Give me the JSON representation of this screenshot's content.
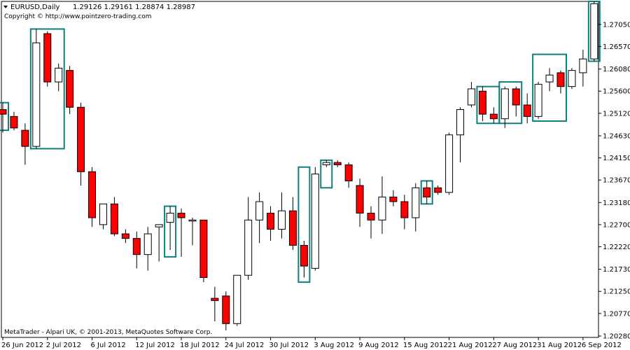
{
  "header": {
    "symbol_line": "EURUSD,Daily",
    "ohlc_line": "1.29126 1.29161 1.28874 1.28987",
    "copyright": "Copyright © http://www.pointzero-trading.com"
  },
  "footer": {
    "platform_text": "MetaTrader - Alpari UK, © 2001-2013, MetaQuotes Software Corp."
  },
  "colors": {
    "bull_fill": "#ffffff",
    "bear_fill": "#ff0000",
    "candle_outline": "#000000",
    "box_outline": "#0e7f7f",
    "background": "#ffffff"
  },
  "chart_data": {
    "type": "candlestick",
    "symbol": "EURUSD",
    "timeframe": "Daily",
    "y_ticks": [
      "1.27050",
      "1.26570",
      "1.26080",
      "1.25600",
      "1.25120",
      "1.24630",
      "1.24150",
      "1.23670",
      "1.23180",
      "1.22700",
      "1.22220",
      "1.21730",
      "1.21250",
      "1.20770",
      "1.20280"
    ],
    "x_ticks": [
      "26 Jun 2012",
      "2 Jul 2012",
      "6 Jul 2012",
      "12 Jul 2012",
      "18 Jul 2012",
      "24 Jul 2012",
      "30 Jul 2012",
      "3 Aug 2012",
      "9 Aug 2012",
      "15 Aug 2012",
      "21 Aug 2012",
      "27 Aug 2012",
      "31 Aug 2012",
      "6 Sep 2012"
    ],
    "ylim": [
      1.2025,
      1.2755
    ],
    "candles": [
      {
        "o": 1.252,
        "h": 1.2535,
        "l": 1.247,
        "c": 1.251
      },
      {
        "o": 1.2505,
        "h": 1.2515,
        "l": 1.2475,
        "c": 1.248
      },
      {
        "o": 1.2475,
        "h": 1.249,
        "l": 1.24,
        "c": 1.244
      },
      {
        "o": 1.244,
        "h": 1.2695,
        "l": 1.2435,
        "c": 1.2665
      },
      {
        "o": 1.2685,
        "h": 1.269,
        "l": 1.257,
        "c": 1.258
      },
      {
        "o": 1.258,
        "h": 1.262,
        "l": 1.256,
        "c": 1.261
      },
      {
        "o": 1.2605,
        "h": 1.2615,
        "l": 1.251,
        "c": 1.2525
      },
      {
        "o": 1.2525,
        "h": 1.2535,
        "l": 1.2355,
        "c": 1.2385
      },
      {
        "o": 1.2385,
        "h": 1.2395,
        "l": 1.2265,
        "c": 1.2285
      },
      {
        "o": 1.227,
        "h": 1.231,
        "l": 1.226,
        "c": 1.2315
      },
      {
        "o": 1.2315,
        "h": 1.233,
        "l": 1.2245,
        "c": 1.225
      },
      {
        "o": 1.225,
        "h": 1.226,
        "l": 1.223,
        "c": 1.224
      },
      {
        "o": 1.224,
        "h": 1.2255,
        "l": 1.2175,
        "c": 1.2205
      },
      {
        "o": 1.2205,
        "h": 1.2265,
        "l": 1.217,
        "c": 1.225
      },
      {
        "o": 1.2265,
        "h": 1.227,
        "l": 1.219,
        "c": 1.227
      },
      {
        "o": 1.2275,
        "h": 1.231,
        "l": 1.2215,
        "c": 1.2295
      },
      {
        "o": 1.2295,
        "h": 1.2305,
        "l": 1.22,
        "c": 1.2285
      },
      {
        "o": 1.228,
        "h": 1.2285,
        "l": 1.2225,
        "c": 1.228
      },
      {
        "o": 1.228,
        "h": 1.228,
        "l": 1.2145,
        "c": 1.2155
      },
      {
        "o": 1.211,
        "h": 1.2135,
        "l": 1.206,
        "c": 1.2105
      },
      {
        "o": 1.2115,
        "h": 1.2125,
        "l": 1.204,
        "c": 1.2055
      },
      {
        "o": 1.2055,
        "h": 1.216,
        "l": 1.205,
        "c": 1.216
      },
      {
        "o": 1.216,
        "h": 1.233,
        "l": 1.215,
        "c": 1.228
      },
      {
        "o": 1.228,
        "h": 1.234,
        "l": 1.223,
        "c": 1.232
      },
      {
        "o": 1.2295,
        "h": 1.231,
        "l": 1.2235,
        "c": 1.226
      },
      {
        "o": 1.226,
        "h": 1.234,
        "l": 1.224,
        "c": 1.23
      },
      {
        "o": 1.23,
        "h": 1.233,
        "l": 1.2215,
        "c": 1.2225
      },
      {
        "o": 1.2225,
        "h": 1.2235,
        "l": 1.2155,
        "c": 1.218
      },
      {
        "o": 1.2175,
        "h": 1.2395,
        "l": 1.217,
        "c": 1.238
      },
      {
        "o": 1.24,
        "h": 1.241,
        "l": 1.2395,
        "c": 1.2405
      },
      {
        "o": 1.2405,
        "h": 1.241,
        "l": 1.2395,
        "c": 1.24
      },
      {
        "o": 1.24,
        "h": 1.2405,
        "l": 1.235,
        "c": 1.2365
      },
      {
        "o": 1.2355,
        "h": 1.237,
        "l": 1.2265,
        "c": 1.2295
      },
      {
        "o": 1.2295,
        "h": 1.231,
        "l": 1.224,
        "c": 1.228
      },
      {
        "o": 1.228,
        "h": 1.2375,
        "l": 1.225,
        "c": 1.233
      },
      {
        "o": 1.233,
        "h": 1.2345,
        "l": 1.231,
        "c": 1.232
      },
      {
        "o": 1.232,
        "h": 1.2335,
        "l": 1.226,
        "c": 1.2285
      },
      {
        "o": 1.2285,
        "h": 1.236,
        "l": 1.2255,
        "c": 1.235
      },
      {
        "o": 1.235,
        "h": 1.2365,
        "l": 1.2315,
        "c": 1.233
      },
      {
        "o": 1.235,
        "h": 1.2355,
        "l": 1.2335,
        "c": 1.234
      },
      {
        "o": 1.234,
        "h": 1.247,
        "l": 1.2335,
        "c": 1.2465
      },
      {
        "o": 1.2465,
        "h": 1.2525,
        "l": 1.2405,
        "c": 1.252
      },
      {
        "o": 1.253,
        "h": 1.258,
        "l": 1.2525,
        "c": 1.2565
      },
      {
        "o": 1.256,
        "h": 1.257,
        "l": 1.2495,
        "c": 1.251
      },
      {
        "o": 1.251,
        "h": 1.2525,
        "l": 1.249,
        "c": 1.25
      },
      {
        "o": 1.25,
        "h": 1.257,
        "l": 1.248,
        "c": 1.2565
      },
      {
        "o": 1.2565,
        "h": 1.257,
        "l": 1.2505,
        "c": 1.253
      },
      {
        "o": 1.253,
        "h": 1.2555,
        "l": 1.249,
        "c": 1.2505
      },
      {
        "o": 1.2505,
        "h": 1.258,
        "l": 1.25,
        "c": 1.2575
      },
      {
        "o": 1.258,
        "h": 1.261,
        "l": 1.256,
        "c": 1.2595
      },
      {
        "o": 1.26,
        "h": 1.2605,
        "l": 1.2555,
        "c": 1.257
      },
      {
        "o": 1.257,
        "h": 1.261,
        "l": 1.2565,
        "c": 1.2605
      },
      {
        "o": 1.26,
        "h": 1.265,
        "l": 1.257,
        "c": 1.263
      },
      {
        "o": 1.263,
        "h": 1.2755,
        "l": 1.2625,
        "c": 1.275
      }
    ],
    "boxes": [
      {
        "from": 0,
        "to": 0,
        "high": 1.2535,
        "low": 1.2475
      },
      {
        "from": 3,
        "to": 5,
        "high": 1.2695,
        "low": 1.2435
      },
      {
        "from": 15,
        "to": 15,
        "high": 1.231,
        "low": 1.22
      },
      {
        "from": 27,
        "to": 27,
        "high": 1.2395,
        "low": 1.2145
      },
      {
        "from": 29,
        "to": 29,
        "high": 1.241,
        "low": 1.235
      },
      {
        "from": 38,
        "to": 38,
        "high": 1.2365,
        "low": 1.2315
      },
      {
        "from": 43,
        "to": 44,
        "high": 1.257,
        "low": 1.249
      },
      {
        "from": 45,
        "to": 46,
        "high": 1.258,
        "low": 1.249
      },
      {
        "from": 48,
        "to": 50,
        "high": 1.264,
        "low": 1.2495
      },
      {
        "from": 53,
        "to": 53,
        "high": 1.2755,
        "low": 1.2625
      }
    ]
  }
}
